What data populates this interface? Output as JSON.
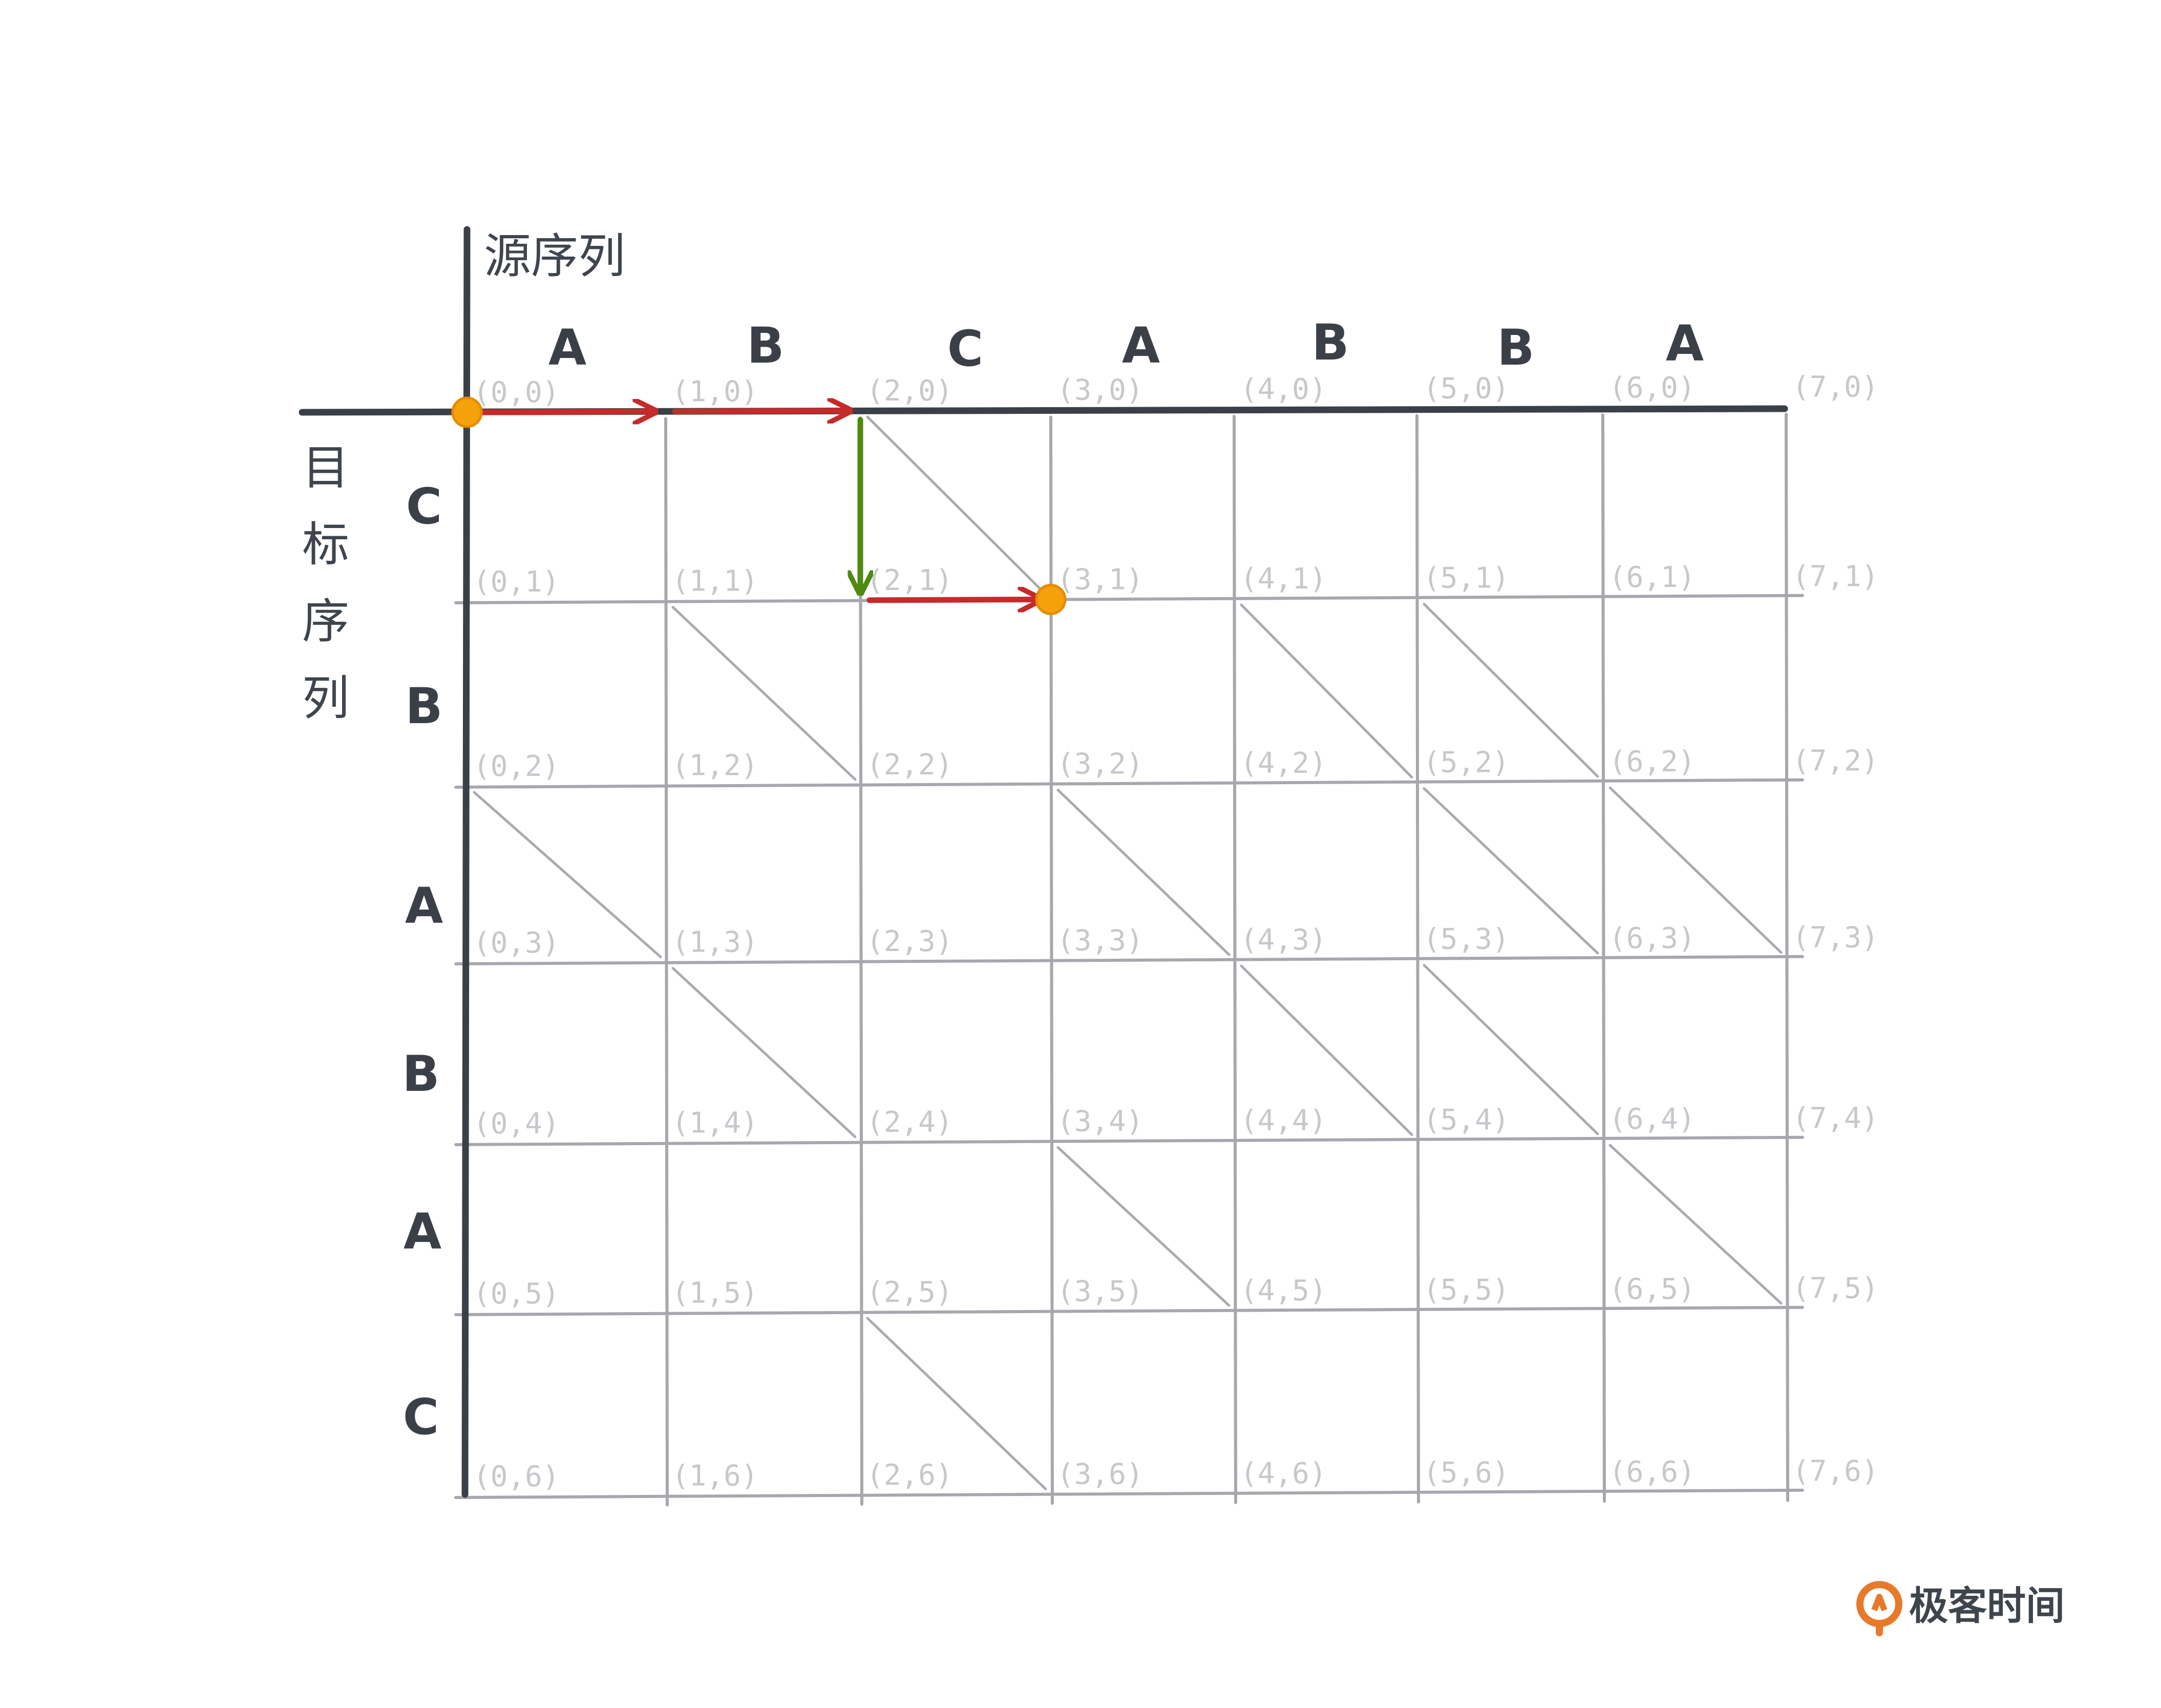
{
  "source_axis_label": "源序列",
  "target_axis_label": [
    "目",
    "标",
    "序",
    "列"
  ],
  "source_sequence": [
    "A",
    "B",
    "C",
    "A",
    "B",
    "B",
    "A"
  ],
  "target_sequence": [
    "C",
    "B",
    "A",
    "B",
    "A",
    "C"
  ],
  "grid": {
    "columns": 8,
    "rows": 7
  },
  "coordinate_format": "(x,y)",
  "diagonal_edges": [
    [
      2,
      0
    ],
    [
      1,
      1
    ],
    [
      4,
      1
    ],
    [
      5,
      1
    ],
    [
      0,
      2
    ],
    [
      3,
      2
    ],
    [
      5,
      2
    ],
    [
      6,
      2
    ],
    [
      1,
      3
    ],
    [
      4,
      3
    ],
    [
      5,
      3
    ],
    [
      3,
      4
    ],
    [
      6,
      4
    ],
    [
      2,
      5
    ]
  ],
  "path": {
    "color_horizontal": "#c62a2a",
    "color_vertical": "#4e8a12",
    "node_color": "#f4a20a",
    "start": [
      0,
      0
    ],
    "end": [
      3,
      1
    ],
    "moves": [
      {
        "from": [
          0,
          0
        ],
        "to": [
          1,
          0
        ],
        "kind": "horizontal"
      },
      {
        "from": [
          1,
          0
        ],
        "to": [
          2,
          0
        ],
        "kind": "horizontal"
      },
      {
        "from": [
          2,
          0
        ],
        "to": [
          2,
          1
        ],
        "kind": "vertical"
      },
      {
        "from": [
          2,
          1
        ],
        "to": [
          3,
          1
        ],
        "kind": "horizontal"
      }
    ]
  },
  "brand": {
    "name": "极客时间",
    "color": "#e8792b"
  }
}
